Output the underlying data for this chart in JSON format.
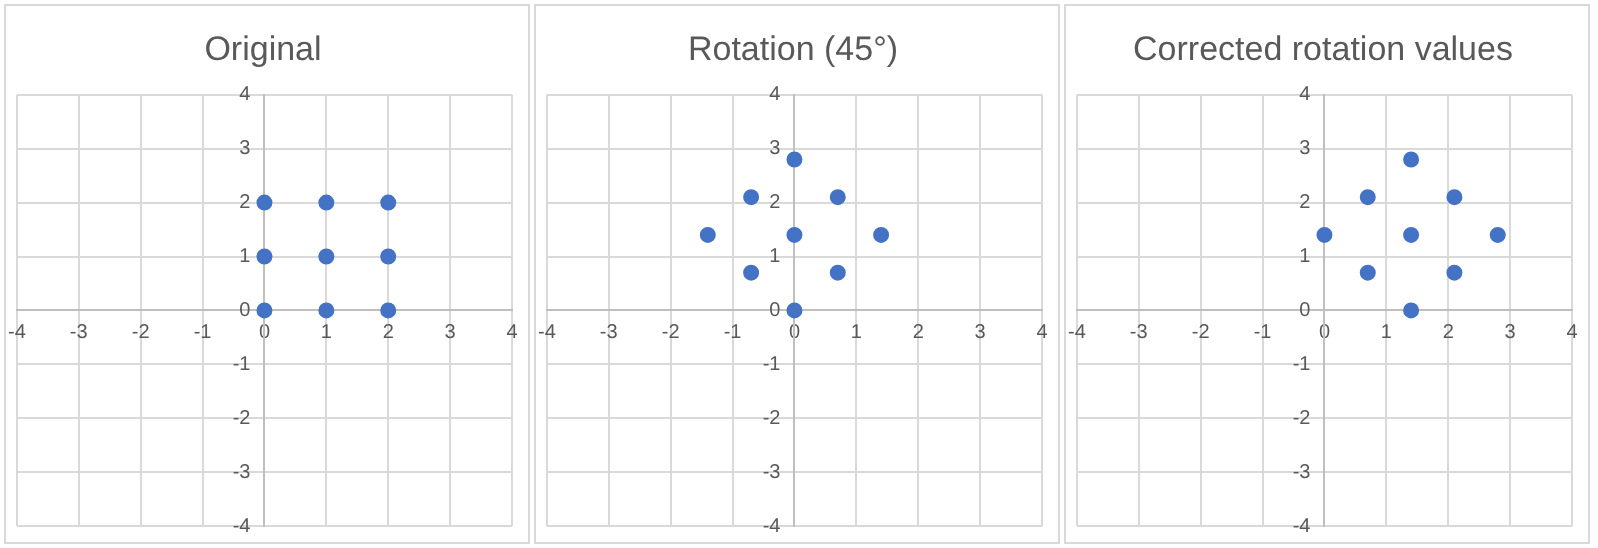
{
  "chart_data": [
    {
      "type": "scatter",
      "title": "Original",
      "x": [
        0,
        0,
        0,
        1,
        1,
        1,
        2,
        2,
        2
      ],
      "series": [
        {
          "color": "#4472c4",
          "values": [
            0,
            1,
            2,
            0,
            1,
            2,
            0,
            1,
            2
          ]
        }
      ],
      "xlim": [
        -4,
        4
      ],
      "ylim": [
        -4,
        4
      ],
      "xticks": [
        -4,
        -3,
        -2,
        -1,
        0,
        1,
        2,
        3,
        4
      ],
      "yticks": [
        -4,
        -3,
        -2,
        -1,
        0,
        1,
        2,
        3,
        4
      ],
      "grid": true,
      "legend": false,
      "marker": "circle"
    },
    {
      "type": "scatter",
      "title": "Rotation (45°)",
      "x": [
        0,
        0.7,
        1.4,
        -0.7,
        0,
        0.7,
        -1.4,
        -0.7,
        0
      ],
      "series": [
        {
          "color": "#4472c4",
          "values": [
            0,
            0.7,
            1.4,
            0.7,
            1.4,
            2.1,
            1.4,
            2.1,
            2.8
          ]
        }
      ],
      "xlim": [
        -4,
        4
      ],
      "ylim": [
        -4,
        4
      ],
      "xticks": [
        -4,
        -3,
        -2,
        -1,
        0,
        1,
        2,
        3,
        4
      ],
      "yticks": [
        -4,
        -3,
        -2,
        -1,
        0,
        1,
        2,
        3,
        4
      ],
      "grid": true,
      "legend": false,
      "marker": "circle"
    },
    {
      "type": "scatter",
      "title": "Corrected rotation values",
      "x": [
        1.4,
        2.1,
        2.8,
        0.7,
        1.4,
        2.1,
        0,
        0.7,
        1.4
      ],
      "series": [
        {
          "color": "#4472c4",
          "values": [
            0,
            0.7,
            1.4,
            0.7,
            1.4,
            2.1,
            1.4,
            2.1,
            2.8
          ]
        }
      ],
      "xlim": [
        -4,
        4
      ],
      "ylim": [
        -4,
        4
      ],
      "xticks": [
        -4,
        -3,
        -2,
        -1,
        0,
        1,
        2,
        3,
        4
      ],
      "yticks": [
        -4,
        -3,
        -2,
        -1,
        0,
        1,
        2,
        3,
        4
      ],
      "grid": true,
      "legend": false,
      "marker": "circle"
    }
  ]
}
